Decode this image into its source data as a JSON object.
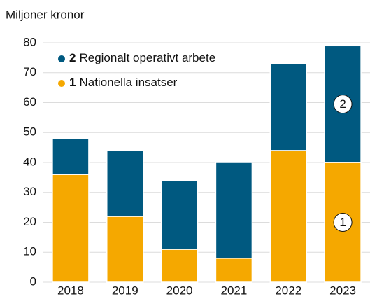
{
  "chart_data": {
    "type": "stacked_bar",
    "y_axis_label": "Miljoner kronor",
    "categories": [
      "2018",
      "2019",
      "2020",
      "2021",
      "2022",
      "2023"
    ],
    "series": [
      {
        "name": "Nationella insatser",
        "number": "1",
        "color": "#f5a800",
        "values": [
          36,
          22,
          11,
          8,
          44,
          40
        ]
      },
      {
        "name": "Regionalt operativt arbete",
        "number": "2",
        "color": "#005980",
        "values": [
          12,
          22,
          23,
          32,
          29,
          39
        ]
      }
    ],
    "ylim": [
      0,
      80
    ],
    "yticks": [
      0,
      10,
      20,
      30,
      40,
      50,
      60,
      70,
      80
    ],
    "grid": true,
    "legend": "top-left"
  }
}
